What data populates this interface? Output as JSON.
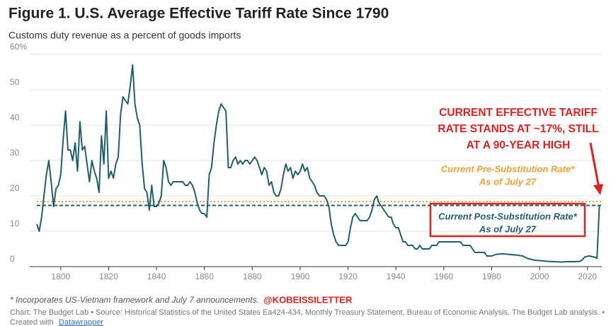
{
  "chart_data": {
    "type": "line",
    "title": "Figure 1. U.S. Average Effective Tariff Rate Since 1790",
    "subtitle": "Customs duty revenue as a percent of goods imports",
    "xlim": [
      1790,
      2026
    ],
    "xticks": [
      1800,
      1820,
      1840,
      1860,
      1880,
      1900,
      1920,
      1940,
      1960,
      1980,
      2000,
      2020
    ],
    "ylim": [
      0,
      60
    ],
    "yticks": [
      0,
      10,
      20,
      30,
      40,
      50,
      {
        "value": 60,
        "label": "60%"
      }
    ],
    "grid": true,
    "series": [
      {
        "color": "#1f5f6e",
        "x": [
          1790,
          1791,
          1792,
          1793,
          1794,
          1795,
          1796,
          1797,
          1798,
          1799,
          1800,
          1801,
          1802,
          1803,
          1804,
          1805,
          1806,
          1807,
          1808,
          1809,
          1810,
          1811,
          1812,
          1813,
          1814,
          1815,
          1816,
          1817,
          1818,
          1819,
          1820,
          1821,
          1822,
          1823,
          1824,
          1825,
          1826,
          1827,
          1828,
          1829,
          1830,
          1831,
          1832,
          1833,
          1834,
          1835,
          1836,
          1837,
          1838,
          1839,
          1840,
          1841,
          1842,
          1843,
          1844,
          1845,
          1846,
          1847,
          1848,
          1849,
          1850,
          1851,
          1852,
          1853,
          1854,
          1855,
          1856,
          1857,
          1858,
          1859,
          1860,
          1861,
          1862,
          1863,
          1864,
          1865,
          1866,
          1867,
          1868,
          1869,
          1870,
          1871,
          1872,
          1873,
          1874,
          1875,
          1876,
          1877,
          1878,
          1879,
          1880,
          1881,
          1882,
          1883,
          1884,
          1885,
          1886,
          1887,
          1888,
          1889,
          1890,
          1891,
          1892,
          1893,
          1894,
          1895,
          1896,
          1897,
          1898,
          1899,
          1900,
          1901,
          1902,
          1903,
          1904,
          1905,
          1906,
          1907,
          1908,
          1909,
          1910,
          1911,
          1912,
          1913,
          1914,
          1915,
          1916,
          1917,
          1918,
          1919,
          1920,
          1921,
          1922,
          1923,
          1924,
          1925,
          1926,
          1927,
          1928,
          1929,
          1930,
          1931,
          1932,
          1933,
          1934,
          1935,
          1936,
          1937,
          1938,
          1939,
          1940,
          1941,
          1942,
          1943,
          1944,
          1945,
          1946,
          1947,
          1948,
          1949,
          1950,
          1951,
          1952,
          1953,
          1954,
          1955,
          1956,
          1957,
          1958,
          1959,
          1960,
          1961,
          1962,
          1963,
          1964,
          1965,
          1966,
          1967,
          1968,
          1969,
          1970,
          1971,
          1972,
          1973,
          1974,
          1975,
          1976,
          1977,
          1978,
          1979,
          1980,
          1982,
          1985,
          1988,
          1990,
          1993,
          1995,
          1998,
          2000,
          2003,
          2006,
          2009,
          2012,
          2015,
          2017,
          2018,
          2019,
          2020,
          2021,
          2022,
          2023,
          2024,
          2025
        ],
        "values": [
          12,
          10,
          14,
          20,
          26,
          30,
          24,
          17,
          22,
          23,
          26,
          36,
          44,
          33,
          33,
          30,
          35,
          27,
          41,
          33,
          34,
          29,
          24,
          30,
          27,
          25,
          21,
          37,
          29,
          44,
          25,
          27,
          25,
          29,
          31,
          43,
          48,
          47,
          46,
          51,
          57,
          46,
          42,
          40,
          29,
          22,
          21,
          16,
          23,
          17,
          17,
          18,
          20,
          30,
          28,
          24,
          23,
          24,
          24,
          24,
          24,
          24,
          23,
          23,
          24,
          23,
          21,
          18,
          16,
          15,
          15,
          14,
          26,
          28,
          35,
          40,
          44,
          46,
          45,
          44,
          28,
          28,
          30,
          31,
          29,
          30,
          29,
          30,
          30,
          29,
          30,
          31,
          30,
          28,
          26,
          28,
          27,
          23,
          24,
          21,
          20,
          20,
          22,
          26,
          29,
          27,
          28,
          25,
          27,
          26,
          27,
          29,
          27,
          28,
          25,
          24,
          23,
          21,
          20,
          20,
          20,
          19,
          17,
          12,
          9,
          7,
          6,
          6,
          6,
          6,
          7,
          11,
          14,
          15,
          14,
          13,
          13,
          13,
          13,
          14,
          16,
          19,
          20,
          18,
          17,
          16,
          15,
          14,
          14,
          12,
          11,
          11,
          9,
          7,
          7,
          6,
          6,
          6,
          5,
          5,
          6,
          5,
          5,
          5,
          5,
          6,
          6,
          6,
          7,
          7,
          7,
          7,
          7,
          7,
          7,
          7,
          7,
          7,
          6,
          6,
          6,
          6,
          5,
          4,
          4,
          4,
          4,
          4,
          3,
          3,
          3,
          3.5,
          3.6,
          3.4,
          3.3,
          3,
          2.3,
          1.8,
          1.7,
          1.5,
          1.4,
          1.3,
          1.4,
          1.4,
          1.5,
          2,
          2.8,
          2.9,
          3,
          2.8,
          2.7,
          2.3,
          17.3
        ]
      }
    ],
    "reference_lines": [
      {
        "value": 18.4,
        "color": "#f0a030",
        "label": [
          "Current Pre-Substitution Rate*",
          "As of July 27"
        ]
      },
      {
        "value": 17.3,
        "color": "#1f5f6e",
        "label": [
          "Current Post-Substitution Rate*",
          "As of July 27"
        ]
      }
    ],
    "annotation": [
      "CURRENT EFFECTIVE TARIFF",
      "RATE STANDS AT ~17%, STILL",
      "AT A 90-YEAR HIGH"
    ],
    "footnote": "* Incorporates US-Vietnam framework and July 7 announcements.",
    "handle": "@KOBEISSILETTER",
    "source": "Chart: The Budget Lab • Source: Historical Statistics of the United States Ea424-434, Monthly Treasury Statement, Bureau of Economic Analysis, The Budget Lab analysis. •",
    "credit": "Created with",
    "credit_link": "Datawrapper"
  }
}
